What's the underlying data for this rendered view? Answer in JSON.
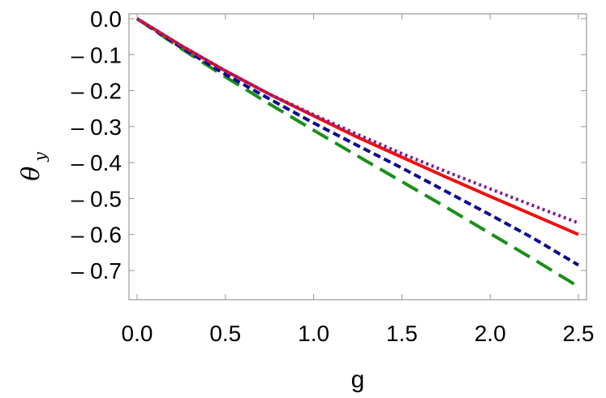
{
  "chart_data": {
    "type": "line",
    "xlabel": "g",
    "ylabel": "θ",
    "ylabel_subscript": "y",
    "xlim": [
      0,
      2.5
    ],
    "ylim": [
      -0.76,
      0.02
    ],
    "x_ticks": [
      0.0,
      0.5,
      1.0,
      1.5,
      2.0,
      2.5
    ],
    "x_tick_labels": [
      "0.0",
      "0.5",
      "1.0",
      "1.5",
      "2.0",
      "2.5"
    ],
    "y_ticks": [
      0.0,
      -0.1,
      -0.2,
      -0.3,
      -0.4,
      -0.5,
      -0.6,
      -0.7
    ],
    "y_tick_labels": [
      "0.0",
      "– 0.1",
      "– 0.2",
      "– 0.3",
      "– 0.4",
      "– 0.5",
      "– 0.6",
      "– 0.7"
    ],
    "grid": false,
    "series": [
      {
        "color": "#1a8f1a",
        "style": "long-dashed",
        "x": [
          0,
          0.25,
          0.5,
          0.75,
          1.0,
          1.25,
          1.5,
          1.75,
          2.0,
          2.25,
          2.5
        ],
        "y": [
          0,
          -0.083,
          -0.162,
          -0.237,
          -0.31,
          -0.382,
          -0.453,
          -0.524,
          -0.597,
          -0.67,
          -0.745
        ]
      },
      {
        "color": "#0a0a8f",
        "style": "dashed",
        "x": [
          0,
          0.25,
          0.5,
          0.75,
          1.0,
          1.25,
          1.5,
          1.75,
          2.0,
          2.25,
          2.5
        ],
        "y": [
          0,
          -0.08,
          -0.155,
          -0.223,
          -0.29,
          -0.353,
          -0.415,
          -0.48,
          -0.545,
          -0.612,
          -0.685
        ]
      },
      {
        "color": "#ee1111",
        "style": "solid",
        "x": [
          0,
          0.25,
          0.5,
          0.75,
          1.0,
          1.25,
          1.5,
          1.75,
          2.0,
          2.25,
          2.5
        ],
        "y": [
          0,
          -0.075,
          -0.145,
          -0.21,
          -0.27,
          -0.33,
          -0.385,
          -0.44,
          -0.494,
          -0.547,
          -0.6
        ]
      },
      {
        "color": "#7a1a9a",
        "style": "dotted",
        "x": [
          0,
          0.25,
          0.5,
          0.75,
          1.0,
          1.25,
          1.5,
          1.75,
          2.0,
          2.25,
          2.5
        ],
        "y": [
          0,
          -0.075,
          -0.145,
          -0.21,
          -0.267,
          -0.322,
          -0.375,
          -0.425,
          -0.473,
          -0.521,
          -0.568
        ]
      }
    ]
  }
}
